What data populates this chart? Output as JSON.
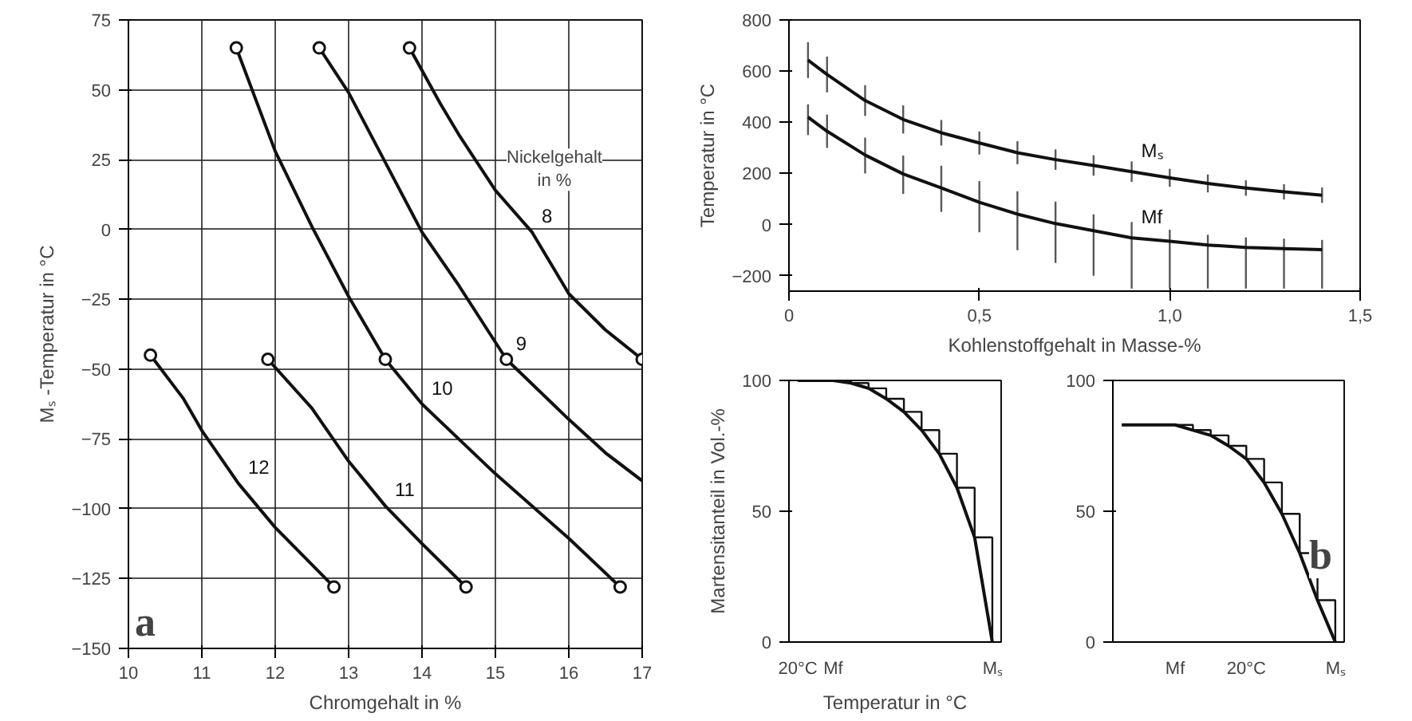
{
  "chart_data": [
    {
      "type": "line",
      "xlabel": "Chromgehalt in %",
      "ylabel": "Mₛ -Temperatur in °C",
      "xlim": [
        10,
        17
      ],
      "ylim": [
        -150,
        75
      ],
      "xticks": [
        10,
        11,
        12,
        13,
        14,
        15,
        16,
        17
      ],
      "yticks": [
        -150,
        -125,
        -100,
        -75,
        -50,
        -25,
        0,
        25,
        50,
        75
      ],
      "grid": true,
      "line_style": "solid",
      "legend_title": "Nickelgehalt\nin %",
      "annotations": [
        "a"
      ],
      "series": [
        {
          "name": "8",
          "color": "#111111",
          "x": [
            13.83,
            14.25,
            14.5,
            15,
            15.5,
            16,
            16.5,
            17
          ],
          "values": [
            65,
            45,
            34,
            14,
            -1,
            -23,
            -36,
            -46.5
          ]
        },
        {
          "name": "9",
          "color": "#111111",
          "x": [
            12.6,
            13,
            13.5,
            14,
            14.5,
            15.15,
            16,
            16.5,
            17
          ],
          "values": [
            65,
            49,
            24,
            -1,
            -20,
            -46.5,
            -68,
            -80,
            -90
          ]
        },
        {
          "name": "10",
          "color": "#111111",
          "x": [
            11.47,
            12,
            12.5,
            13,
            13.5,
            14,
            15,
            16,
            16.7
          ],
          "values": [
            65,
            28,
            1,
            -24,
            -46.5,
            -62.5,
            -87.5,
            -110.6,
            -128
          ]
        },
        {
          "name": "11",
          "color": "#111111",
          "x": [
            11.9,
            12.5,
            13,
            13.5,
            14,
            14.6
          ],
          "values": [
            -46.5,
            -64,
            -83,
            -99,
            -112.5,
            -128
          ]
        },
        {
          "name": "12",
          "color": "#111111",
          "x": [
            10.3,
            10.75,
            11,
            11.5,
            12,
            12.8
          ],
          "values": [
            -45,
            -60.6,
            -72,
            -91,
            -106.7,
            -128
          ]
        },
        {
          "type": "scatter",
          "marker": "circle",
          "color": "#111111",
          "x": [
            13.83,
            17,
            12.6,
            15.15,
            11.47,
            13.5,
            16.7,
            11.9,
            14.6,
            10.3,
            12.8
          ],
          "values": [
            65,
            -46.5,
            65,
            -46.5,
            65,
            -46.5,
            -128,
            -46.5,
            -128,
            -45,
            -128
          ]
        }
      ]
    },
    {
      "type": "line",
      "xlabel": "Kohlenstoffgehalt in Masse-%",
      "ylabel": "Temperatur in °C",
      "xlim": [
        0,
        1.5
      ],
      "ylim": [
        -260,
        800
      ],
      "xticks": [
        0,
        {
          "value": 0.5,
          "label": "0,5"
        },
        {
          "value": 1.0,
          "label": "1,0"
        },
        {
          "value": 1.5,
          "label": "1,5"
        }
      ],
      "yticks": [
        -200,
        0,
        200,
        400,
        600,
        800
      ],
      "line_style": "solid",
      "series": [
        {
          "name": "Mₛ",
          "color": "#111111",
          "x": [
            0.05,
            0.1,
            0.2,
            0.3,
            0.4,
            0.5,
            0.6,
            0.7,
            0.8,
            0.9,
            1.0,
            1.1,
            1.2,
            1.3,
            1.4
          ],
          "values": [
            643,
            587,
            485,
            411,
            359,
            319,
            281,
            254,
            231,
            207,
            183,
            161,
            143,
            128,
            115
          ],
          "errors": [
            70,
            70,
            60,
            55,
            50,
            45,
            45,
            40,
            40,
            40,
            35,
            35,
            30,
            30,
            30
          ]
        },
        {
          "name": "Mf",
          "color": "#111111",
          "x": [
            0.05,
            0.1,
            0.2,
            0.3,
            0.4,
            0.5,
            0.6,
            0.7,
            0.8,
            0.9,
            1.0,
            1.1,
            1.2,
            1.3,
            1.4
          ],
          "values": [
            420,
            365,
            272,
            198,
            143,
            87,
            41,
            4,
            -24,
            -52,
            -65,
            -80,
            -89,
            -94,
            -98
          ],
          "errors": [
            [
              350,
              470
            ],
            [
              300,
              430
            ],
            [
              200,
              340
            ],
            [
              120,
              270
            ],
            [
              50,
              230
            ],
            [
              -30,
              170
            ],
            [
              -100,
              130
            ],
            [
              -150,
              90
            ],
            [
              -200,
              40
            ],
            [
              -250,
              10
            ],
            [
              -250,
              -20
            ],
            [
              -250,
              -40
            ],
            [
              -250,
              -50
            ],
            [
              -250,
              -55
            ],
            [
              -250,
              -60
            ]
          ]
        }
      ]
    },
    {
      "type": "line",
      "ylabel": "Martensitanteil in Vol.-%",
      "xlabel": "Temperatur in °C",
      "ylim": [
        0,
        100
      ],
      "yticks": [
        0,
        50,
        100
      ],
      "line_style": "solid",
      "categories": [
        "20°C",
        null,
        "Mf",
        null,
        null,
        null,
        null,
        null,
        null,
        null,
        null,
        "Mₛ"
      ],
      "series": [
        {
          "type": "step",
          "color": "#111111",
          "values": [
            100,
            100,
            100,
            99,
            97,
            93,
            88,
            81,
            72,
            59,
            40,
            0
          ]
        },
        {
          "type": "line",
          "color": "#111111",
          "values": [
            100,
            100,
            100,
            99,
            97,
            93,
            88,
            81,
            72,
            59,
            40,
            0
          ]
        }
      ]
    },
    {
      "type": "line",
      "ylim": [
        0,
        100
      ],
      "yticks": [
        0,
        50,
        100
      ],
      "line_style": "solid",
      "annotations": [
        "b"
      ],
      "categories": [
        null,
        null,
        null,
        "Mf",
        null,
        null,
        null,
        "20°C",
        null,
        null,
        null,
        null,
        "Mₛ"
      ],
      "series": [
        {
          "type": "step",
          "color": "#111111",
          "values": [
            83,
            83,
            83,
            83,
            81,
            79,
            75,
            70,
            61,
            49,
            34,
            16,
            0
          ]
        },
        {
          "type": "line",
          "color": "#111111",
          "values": [
            83,
            83,
            83,
            83,
            81,
            79,
            75,
            70,
            61,
            49,
            34,
            16,
            0
          ]
        }
      ]
    }
  ]
}
